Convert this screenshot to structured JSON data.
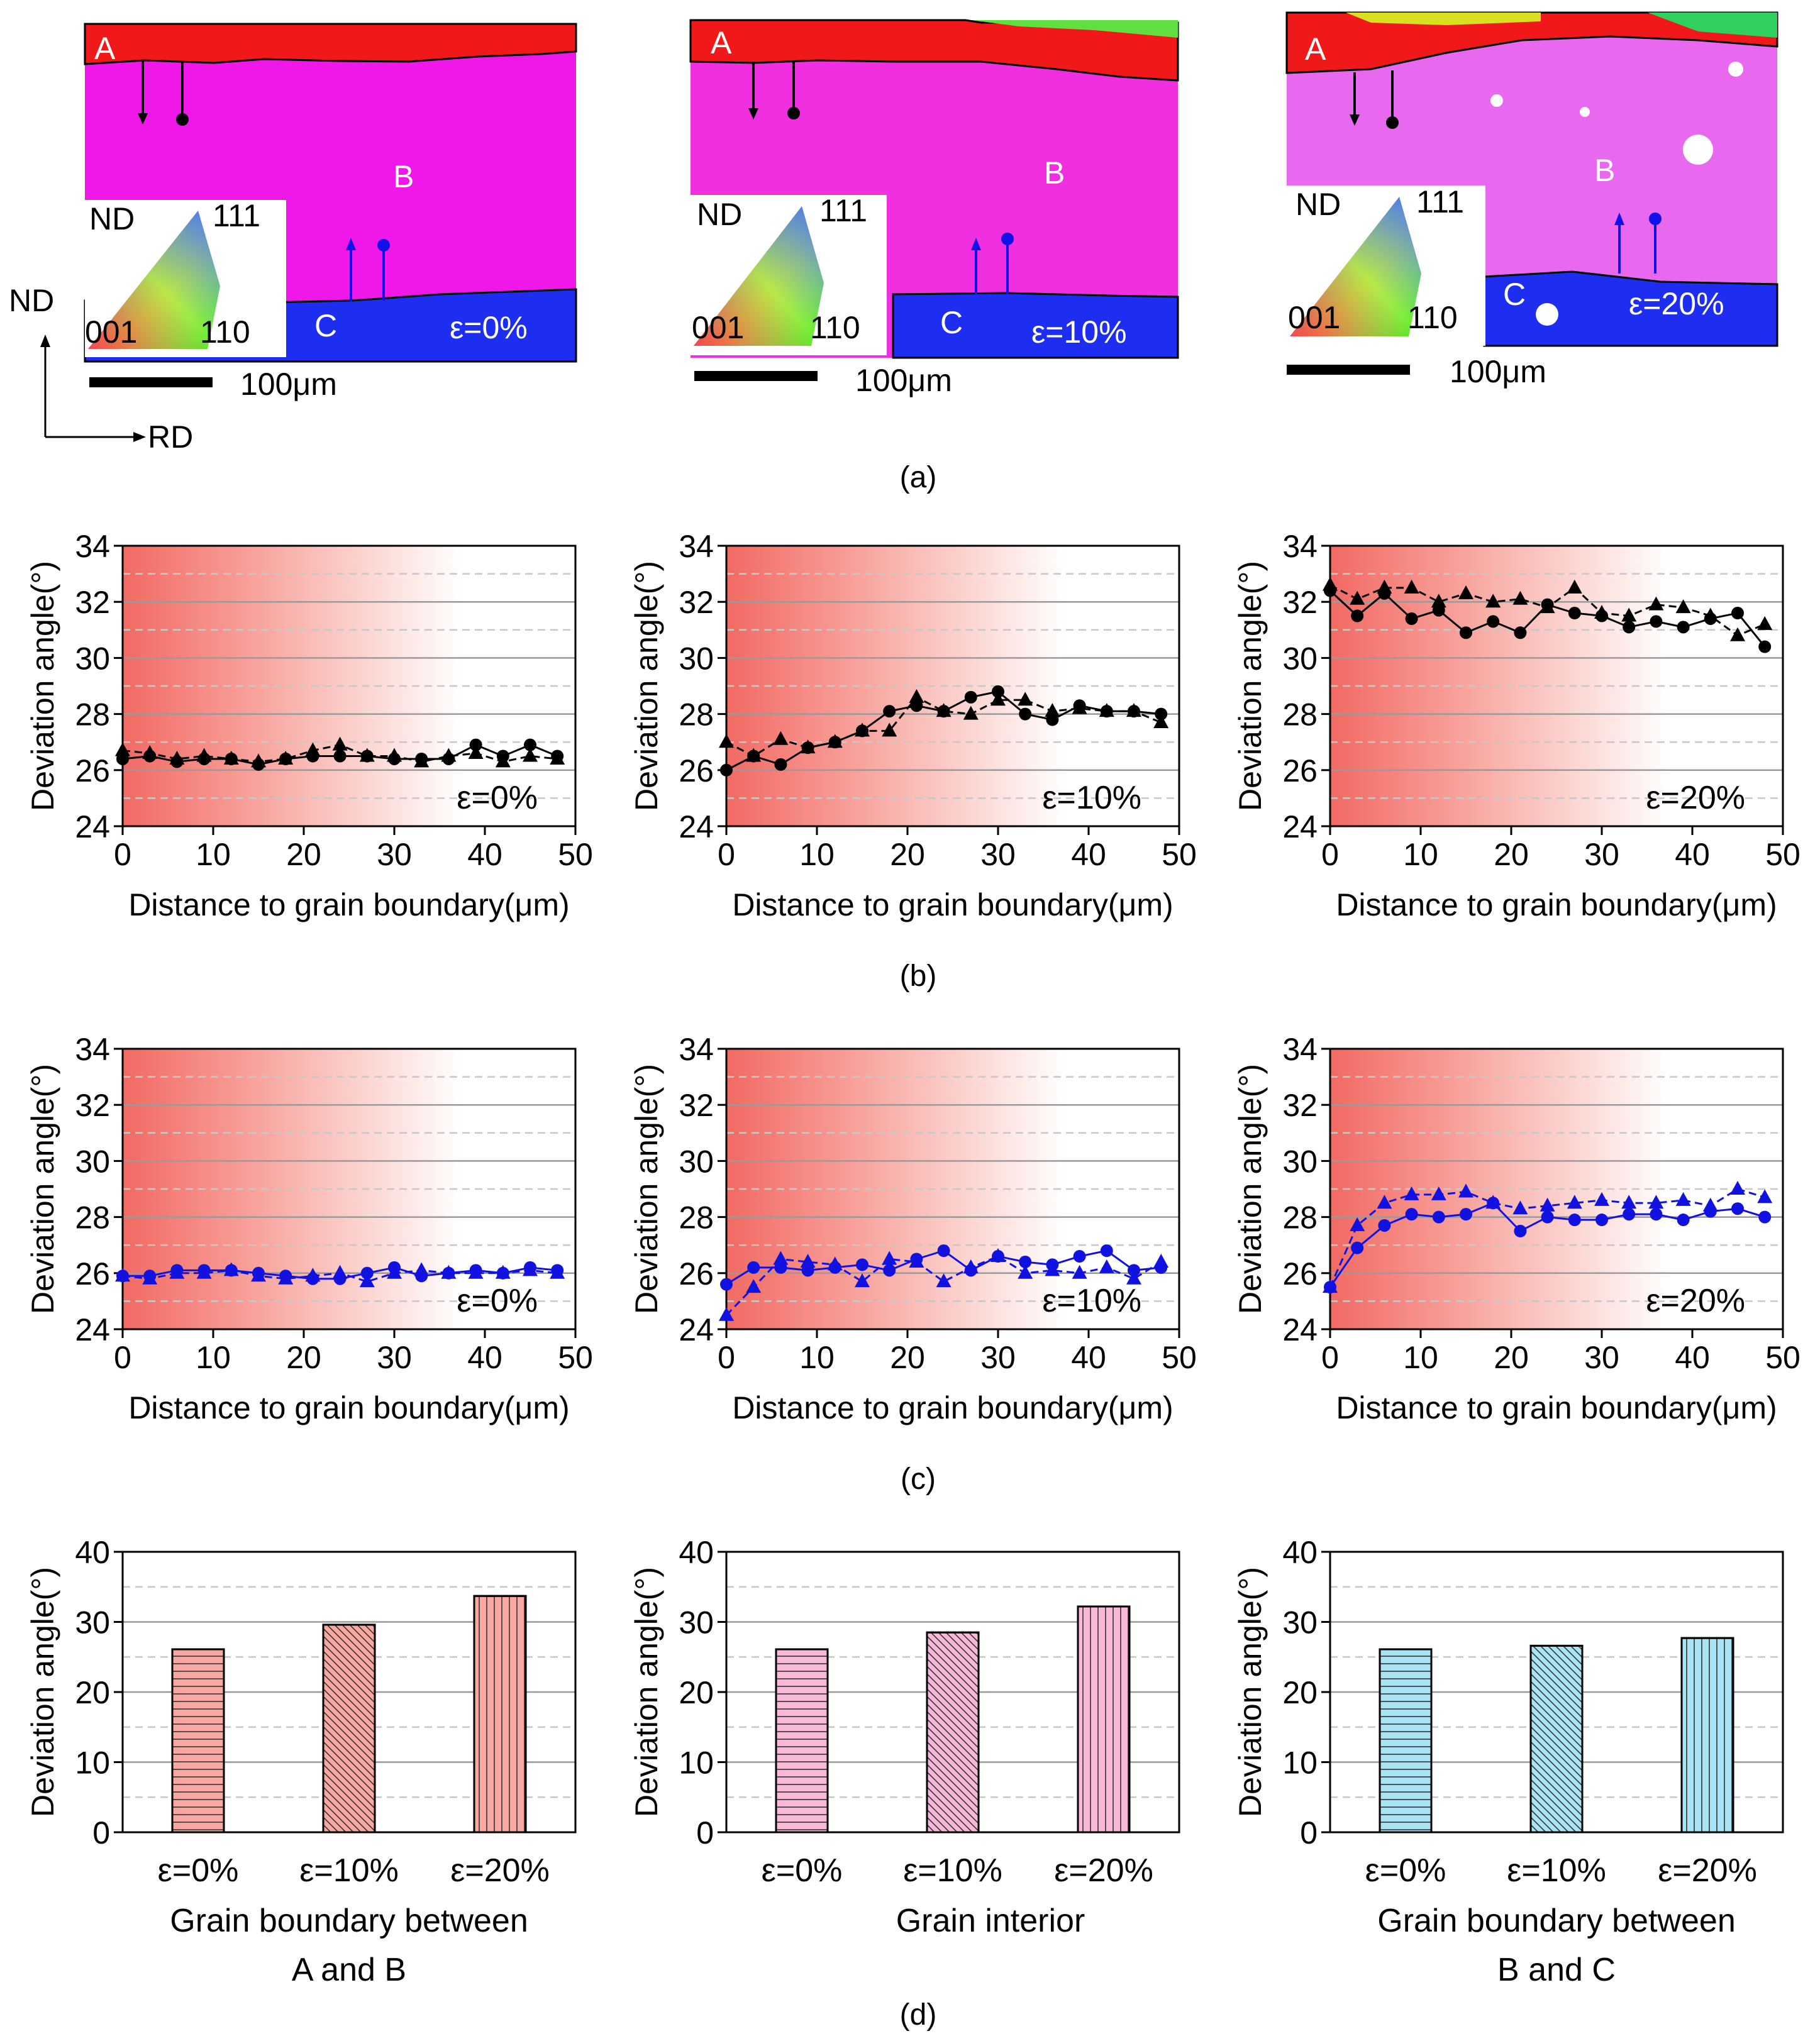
{
  "figure": {
    "panel_labels": [
      "(a)",
      "(b)",
      "(c)",
      "(d)"
    ]
  },
  "ebsd_maps": {
    "legend": {
      "nd": "ND",
      "c111": "111",
      "c001": "001",
      "c110": "110"
    },
    "axes_indicator": {
      "nd": "ND",
      "rd": "RD"
    },
    "scale_label": "100μm",
    "grain_labels": [
      "A",
      "B",
      "C"
    ],
    "strain_labels": [
      "ε=0%",
      "ε=10%",
      "ε=20%"
    ],
    "colors": {
      "grain_A": "#f01818",
      "grain_B": "#f018e8",
      "grain_C": "#1e2ef0",
      "boundary_marker_A": "#000000",
      "boundary_marker_C": "#1212e8"
    }
  },
  "chart_data": [
    {
      "type": "line",
      "panel": "(b)",
      "strain_label": "ε=0%",
      "xlabel": "Distance to grain boundary(μm)",
      "ylabel": "Deviation angle(°)",
      "xlim": [
        0,
        50
      ],
      "ylim": [
        24,
        34
      ],
      "xticks": [
        0,
        10,
        20,
        30,
        40,
        50
      ],
      "yticks": [
        24,
        26,
        28,
        30,
        32,
        34
      ],
      "color": "#000000",
      "grid": true,
      "series": [
        {
          "marker": "circle",
          "x": [
            0,
            3,
            6,
            9,
            12,
            15,
            18,
            21,
            24,
            27,
            30,
            33,
            36,
            39,
            42,
            45,
            48
          ],
          "y": [
            26.4,
            26.5,
            26.3,
            26.4,
            26.4,
            26.2,
            26.4,
            26.5,
            26.5,
            26.5,
            26.4,
            26.4,
            26.4,
            26.9,
            26.5,
            26.9,
            26.5
          ]
        },
        {
          "marker": "triangle",
          "x": [
            0,
            3,
            6,
            9,
            12,
            15,
            18,
            21,
            24,
            27,
            30,
            33,
            36,
            39,
            42,
            45,
            48
          ],
          "y": [
            26.7,
            26.6,
            26.4,
            26.5,
            26.4,
            26.3,
            26.4,
            26.7,
            26.9,
            26.5,
            26.5,
            26.3,
            26.5,
            26.6,
            26.3,
            26.5,
            26.4
          ]
        }
      ]
    },
    {
      "type": "line",
      "panel": "(b)",
      "strain_label": "ε=10%",
      "xlabel": "Distance to grain boundary(μm)",
      "ylabel": "Deviation angle(°)",
      "xlim": [
        0,
        50
      ],
      "ylim": [
        24,
        34
      ],
      "xticks": [
        0,
        10,
        20,
        30,
        40,
        50
      ],
      "yticks": [
        24,
        26,
        28,
        30,
        32,
        34
      ],
      "color": "#000000",
      "grid": true,
      "series": [
        {
          "marker": "circle",
          "x": [
            0,
            3,
            6,
            9,
            12,
            15,
            18,
            21,
            24,
            27,
            30,
            33,
            36,
            39,
            42,
            45,
            48
          ],
          "y": [
            26.0,
            26.5,
            26.2,
            26.8,
            27.0,
            27.4,
            28.1,
            28.3,
            28.1,
            28.6,
            28.8,
            28.0,
            27.8,
            28.3,
            28.1,
            28.1,
            28.0
          ]
        },
        {
          "marker": "triangle",
          "x": [
            0,
            3,
            6,
            9,
            12,
            15,
            18,
            21,
            24,
            27,
            30,
            33,
            36,
            39,
            42,
            45,
            48
          ],
          "y": [
            27.0,
            26.5,
            27.1,
            26.8,
            27.0,
            27.4,
            27.4,
            28.6,
            28.1,
            28.0,
            28.5,
            28.5,
            28.1,
            28.2,
            28.1,
            28.1,
            27.7
          ]
        }
      ]
    },
    {
      "type": "line",
      "panel": "(b)",
      "strain_label": "ε=20%",
      "xlabel": "Distance to grain boundary(μm)",
      "ylabel": "Deviation angle(°)",
      "xlim": [
        0,
        50
      ],
      "ylim": [
        24,
        34
      ],
      "xticks": [
        0,
        10,
        20,
        30,
        40,
        50
      ],
      "yticks": [
        24,
        26,
        28,
        30,
        32,
        34
      ],
      "color": "#000000",
      "grid": true,
      "series": [
        {
          "marker": "circle",
          "x": [
            0,
            3,
            6,
            9,
            12,
            15,
            18,
            21,
            24,
            27,
            30,
            33,
            36,
            39,
            42,
            45,
            48
          ],
          "y": [
            32.4,
            31.5,
            32.3,
            31.4,
            31.7,
            30.9,
            31.3,
            30.9,
            31.9,
            31.6,
            31.5,
            31.1,
            31.3,
            31.1,
            31.4,
            31.6,
            30.4
          ]
        },
        {
          "marker": "triangle",
          "x": [
            0,
            3,
            6,
            9,
            12,
            15,
            18,
            21,
            24,
            27,
            30,
            33,
            36,
            39,
            42,
            45,
            48
          ],
          "y": [
            32.6,
            32.1,
            32.5,
            32.5,
            32.0,
            32.3,
            32.0,
            32.1,
            31.8,
            32.5,
            31.6,
            31.5,
            31.9,
            31.8,
            31.5,
            30.8,
            31.2
          ]
        }
      ]
    },
    {
      "type": "line",
      "panel": "(c)",
      "strain_label": "ε=0%",
      "xlabel": "Distance to grain boundary(μm)",
      "ylabel": "Deviation angle(°)",
      "xlim": [
        0,
        50
      ],
      "ylim": [
        24,
        34
      ],
      "xticks": [
        0,
        10,
        20,
        30,
        40,
        50
      ],
      "yticks": [
        24,
        26,
        28,
        30,
        32,
        34
      ],
      "color": "#1212e0",
      "grid": true,
      "series": [
        {
          "marker": "circle",
          "x": [
            0,
            3,
            6,
            9,
            12,
            15,
            18,
            21,
            24,
            27,
            30,
            33,
            36,
            39,
            42,
            45,
            48
          ],
          "y": [
            25.9,
            25.9,
            26.1,
            26.1,
            26.1,
            26.0,
            25.9,
            25.8,
            25.8,
            26.0,
            26.2,
            25.9,
            26.0,
            26.1,
            26.0,
            26.2,
            26.1
          ]
        },
        {
          "marker": "triangle",
          "x": [
            0,
            3,
            6,
            9,
            12,
            15,
            18,
            21,
            24,
            27,
            30,
            33,
            36,
            39,
            42,
            45,
            48
          ],
          "y": [
            25.9,
            25.8,
            26.0,
            26.0,
            26.1,
            25.9,
            25.8,
            25.9,
            26.0,
            25.7,
            26.0,
            26.1,
            26.0,
            26.0,
            26.0,
            26.1,
            26.0
          ]
        }
      ]
    },
    {
      "type": "line",
      "panel": "(c)",
      "strain_label": "ε=10%",
      "xlabel": "Distance to grain boundary(μm)",
      "ylabel": "Deviation angle(°)",
      "xlim": [
        0,
        50
      ],
      "ylim": [
        24,
        34
      ],
      "xticks": [
        0,
        10,
        20,
        30,
        40,
        50
      ],
      "yticks": [
        24,
        26,
        28,
        30,
        32,
        34
      ],
      "color": "#1212e0",
      "grid": true,
      "series": [
        {
          "marker": "circle",
          "x": [
            0,
            3,
            6,
            9,
            12,
            15,
            18,
            21,
            24,
            27,
            30,
            33,
            36,
            39,
            42,
            45,
            48
          ],
          "y": [
            25.6,
            26.2,
            26.2,
            26.1,
            26.2,
            26.3,
            26.1,
            26.5,
            26.8,
            26.1,
            26.6,
            26.4,
            26.3,
            26.6,
            26.8,
            26.1,
            26.2
          ]
        },
        {
          "marker": "triangle",
          "x": [
            0,
            3,
            6,
            9,
            12,
            15,
            18,
            21,
            24,
            27,
            30,
            33,
            36,
            39,
            42,
            45,
            48
          ],
          "y": [
            24.5,
            25.5,
            26.5,
            26.4,
            26.3,
            25.7,
            26.5,
            26.4,
            25.7,
            26.2,
            26.6,
            26.0,
            26.1,
            26.0,
            26.2,
            25.8,
            26.4
          ]
        }
      ]
    },
    {
      "type": "line",
      "panel": "(c)",
      "strain_label": "ε=20%",
      "xlabel": "Distance to grain boundary(μm)",
      "ylabel": "Deviation angle(°)",
      "xlim": [
        0,
        50
      ],
      "ylim": [
        24,
        34
      ],
      "xticks": [
        0,
        10,
        20,
        30,
        40,
        50
      ],
      "yticks": [
        24,
        26,
        28,
        30,
        32,
        34
      ],
      "color": "#1212e0",
      "grid": true,
      "series": [
        {
          "marker": "circle",
          "x": [
            0,
            3,
            6,
            9,
            12,
            15,
            18,
            21,
            24,
            27,
            30,
            33,
            36,
            39,
            42,
            45,
            48
          ],
          "y": [
            25.5,
            26.9,
            27.7,
            28.1,
            28.0,
            28.1,
            28.5,
            27.5,
            28.0,
            27.9,
            27.9,
            28.1,
            28.1,
            27.9,
            28.2,
            28.3,
            28.0
          ]
        },
        {
          "marker": "triangle",
          "x": [
            0,
            3,
            6,
            9,
            12,
            15,
            18,
            21,
            24,
            27,
            30,
            33,
            36,
            39,
            42,
            45,
            48
          ],
          "y": [
            25.5,
            27.7,
            28.5,
            28.8,
            28.8,
            28.9,
            28.5,
            28.3,
            28.4,
            28.5,
            28.6,
            28.5,
            28.5,
            28.6,
            28.4,
            29.0,
            28.7
          ]
        }
      ]
    },
    {
      "type": "bar",
      "panel": "(d)",
      "xlabel_lines": [
        "Grain boundary between",
        "A and B"
      ],
      "ylabel": "Deviation angle(°)",
      "categories": [
        "ε=0%",
        "ε=10%",
        "ε=20%"
      ],
      "values": [
        26.1,
        29.6,
        33.7
      ],
      "patterns": [
        "horizontal",
        "diagonal",
        "vertical"
      ],
      "ylim": [
        0,
        40
      ],
      "yticks": [
        0,
        10,
        20,
        30,
        40
      ],
      "fill": "#f8a8a0",
      "grid": true
    },
    {
      "type": "bar",
      "panel": "(d)",
      "xlabel_lines": [
        "Grain interior"
      ],
      "ylabel": "Deviation angle(°)",
      "categories": [
        "ε=0%",
        "ε=10%",
        "ε=20%"
      ],
      "values": [
        26.1,
        28.5,
        32.2
      ],
      "patterns": [
        "horizontal",
        "diagonal",
        "vertical"
      ],
      "ylim": [
        0,
        40
      ],
      "yticks": [
        0,
        10,
        20,
        30,
        40
      ],
      "fill": "#f8b8d8",
      "grid": true
    },
    {
      "type": "bar",
      "panel": "(d)",
      "xlabel_lines": [
        "Grain boundary between",
        "B and C"
      ],
      "ylabel": "Deviation angle(°)",
      "categories": [
        "ε=0%",
        "ε=10%",
        "ε=20%"
      ],
      "values": [
        26.1,
        26.6,
        27.7
      ],
      "patterns": [
        "horizontal",
        "diagonal",
        "vertical"
      ],
      "ylim": [
        0,
        40
      ],
      "yticks": [
        0,
        10,
        20,
        30,
        40
      ],
      "fill": "#a8e4f4",
      "grid": true
    }
  ]
}
